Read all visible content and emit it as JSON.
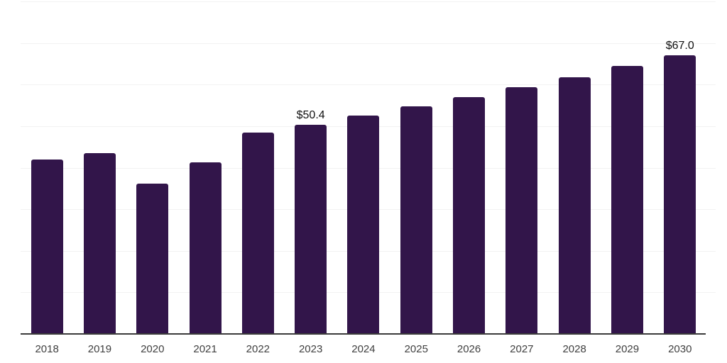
{
  "chart_data": {
    "type": "bar",
    "title": "",
    "xlabel": "",
    "ylabel": "",
    "categories": [
      "2018",
      "2019",
      "2020",
      "2021",
      "2022",
      "2023",
      "2024",
      "2025",
      "2026",
      "2027",
      "2028",
      "2029",
      "2030"
    ],
    "values": [
      42.0,
      43.5,
      36.2,
      41.3,
      48.5,
      50.4,
      52.6,
      54.8,
      57.0,
      59.3,
      61.8,
      64.4,
      67.0
    ],
    "value_labels": [
      "",
      "",
      "",
      "",
      "",
      "$50.4",
      "",
      "",
      "",
      "",
      "",
      "",
      "$67.0"
    ],
    "ylim": [
      0,
      80
    ],
    "gridline_step": 10,
    "grid": true,
    "legend_position": "none",
    "colors": {
      "bar": "#32154A",
      "gridline": "#F2F2F2",
      "axis_line": "#3B3B3B",
      "tick_label": "#3F3F3F",
      "value_label": "#101010",
      "background": "#FFFFFF"
    }
  }
}
